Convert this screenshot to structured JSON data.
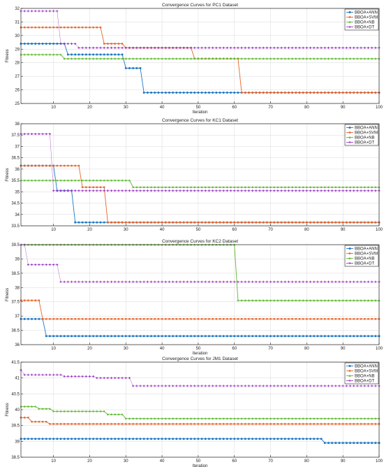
{
  "colors": {
    "BBOA+ANN": "#1f77c4",
    "BBOA+SVM": "#e8642a",
    "BBOA+NB": "#5cb82e",
    "BBOA+DT": "#9b3cc4",
    "grid": "#d8d8d8",
    "axis": "#222222"
  },
  "chart_data": [
    {
      "type": "line",
      "title": "Convergence Curves for PC1 Dataset",
      "xlabel": "Iteration",
      "ylabel": "Fitness",
      "xlim": [
        1,
        100
      ],
      "ylim": [
        25,
        32
      ],
      "xticks": [
        10,
        20,
        30,
        40,
        50,
        60,
        70,
        80,
        90,
        100
      ],
      "yticks": [
        25,
        26,
        27,
        28,
        29,
        30,
        31,
        32
      ],
      "grid": true,
      "legend": "top-right",
      "series": [
        {
          "name": "BBOA+ANN",
          "steps": [
            [
              1,
              29.4
            ],
            [
              14,
              28.6
            ],
            [
              30,
              27.6
            ],
            [
              35,
              25.8
            ]
          ]
        },
        {
          "name": "BBOA+SVM",
          "steps": [
            [
              1,
              30.6
            ],
            [
              24,
              29.4
            ],
            [
              30,
              29.1
            ],
            [
              49,
              28.3
            ],
            [
              62,
              25.8
            ]
          ]
        },
        {
          "name": "BBOA+NB",
          "steps": [
            [
              1,
              28.6
            ],
            [
              13,
              28.3
            ]
          ]
        },
        {
          "name": "BBOA+DT",
          "steps": [
            [
              1,
              31.8
            ],
            [
              12,
              29.4
            ],
            [
              17,
              29.1
            ]
          ]
        }
      ]
    },
    {
      "type": "line",
      "title": "Convergence Curves for KC1 Dataset",
      "xlabel": "",
      "ylabel": "Fitness",
      "xlim": [
        1,
        100
      ],
      "ylim": [
        33.5,
        38
      ],
      "xticks": [
        10,
        20,
        30,
        40,
        50,
        60,
        70,
        80,
        90,
        100
      ],
      "yticks": [
        33.5,
        34,
        34.5,
        35,
        35.5,
        36,
        36.5,
        37,
        37.5,
        38
      ],
      "grid": true,
      "legend": "top-right",
      "series": [
        {
          "name": "BBOA+ANN",
          "steps": [
            [
              1,
              36.15
            ],
            [
              11,
              35.05
            ],
            [
              16,
              33.65
            ]
          ]
        },
        {
          "name": "BBOA+SVM",
          "steps": [
            [
              1,
              36.15
            ],
            [
              18,
              35.2
            ],
            [
              25,
              33.65
            ]
          ]
        },
        {
          "name": "BBOA+NB",
          "steps": [
            [
              1,
              35.5
            ],
            [
              32,
              35.2
            ]
          ]
        },
        {
          "name": "BBOA+DT",
          "steps": [
            [
              1,
              37.55
            ],
            [
              10,
              35.05
            ]
          ]
        }
      ]
    },
    {
      "type": "line",
      "title": "Convergence Curves for KC2 Dataset",
      "xlabel": "Iteration",
      "ylabel": "Fitness",
      "xlim": [
        1,
        100
      ],
      "ylim": [
        36,
        39.5
      ],
      "xticks": [
        10,
        20,
        30,
        40,
        50,
        60,
        70,
        80,
        90,
        100
      ],
      "yticks": [
        36,
        36.5,
        37,
        37.5,
        38,
        38.5,
        39,
        39.5
      ],
      "grid": true,
      "legend": "top-right",
      "series": [
        {
          "name": "BBOA+ANN",
          "steps": [
            [
              1,
              36.9
            ],
            [
              8,
              36.3
            ]
          ]
        },
        {
          "name": "BBOA+SVM",
          "steps": [
            [
              1,
              37.55
            ],
            [
              7,
              36.9
            ]
          ]
        },
        {
          "name": "BBOA+NB",
          "steps": [
            [
              1,
              39.5
            ],
            [
              61,
              37.55
            ]
          ]
        },
        {
          "name": "BBOA+DT",
          "steps": [
            [
              1,
              39.5
            ],
            [
              3,
              38.8
            ],
            [
              12,
              38.2
            ]
          ]
        }
      ]
    },
    {
      "type": "line",
      "title": "Convergence Curves for JM1 Dataset",
      "xlabel": "Iteration",
      "ylabel": "Fitness",
      "xlim": [
        1,
        100
      ],
      "ylim": [
        38.5,
        41.5
      ],
      "xticks": [
        10,
        20,
        30,
        40,
        50,
        60,
        70,
        80,
        90,
        100
      ],
      "yticks": [
        38.5,
        39,
        39.5,
        40,
        40.5,
        41,
        41.5
      ],
      "grid": true,
      "legend": "top-right",
      "series": [
        {
          "name": "BBOA+ANN",
          "steps": [
            [
              1,
              39.08
            ],
            [
              85,
              38.95
            ]
          ]
        },
        {
          "name": "BBOA+SVM",
          "steps": [
            [
              1,
              39.75
            ],
            [
              4,
              39.62
            ],
            [
              9,
              39.55
            ]
          ]
        },
        {
          "name": "BBOA+NB",
          "steps": [
            [
              1,
              40.1
            ],
            [
              6,
              40.03
            ],
            [
              10,
              39.95
            ],
            [
              25,
              39.85
            ],
            [
              30,
              39.72
            ]
          ]
        },
        {
          "name": "BBOA+DT",
          "steps": [
            [
              1,
              41.25
            ],
            [
              2,
              41.1
            ],
            [
              13,
              41.05
            ],
            [
              22,
              41.0
            ],
            [
              32,
              40.75
            ]
          ]
        }
      ]
    }
  ]
}
